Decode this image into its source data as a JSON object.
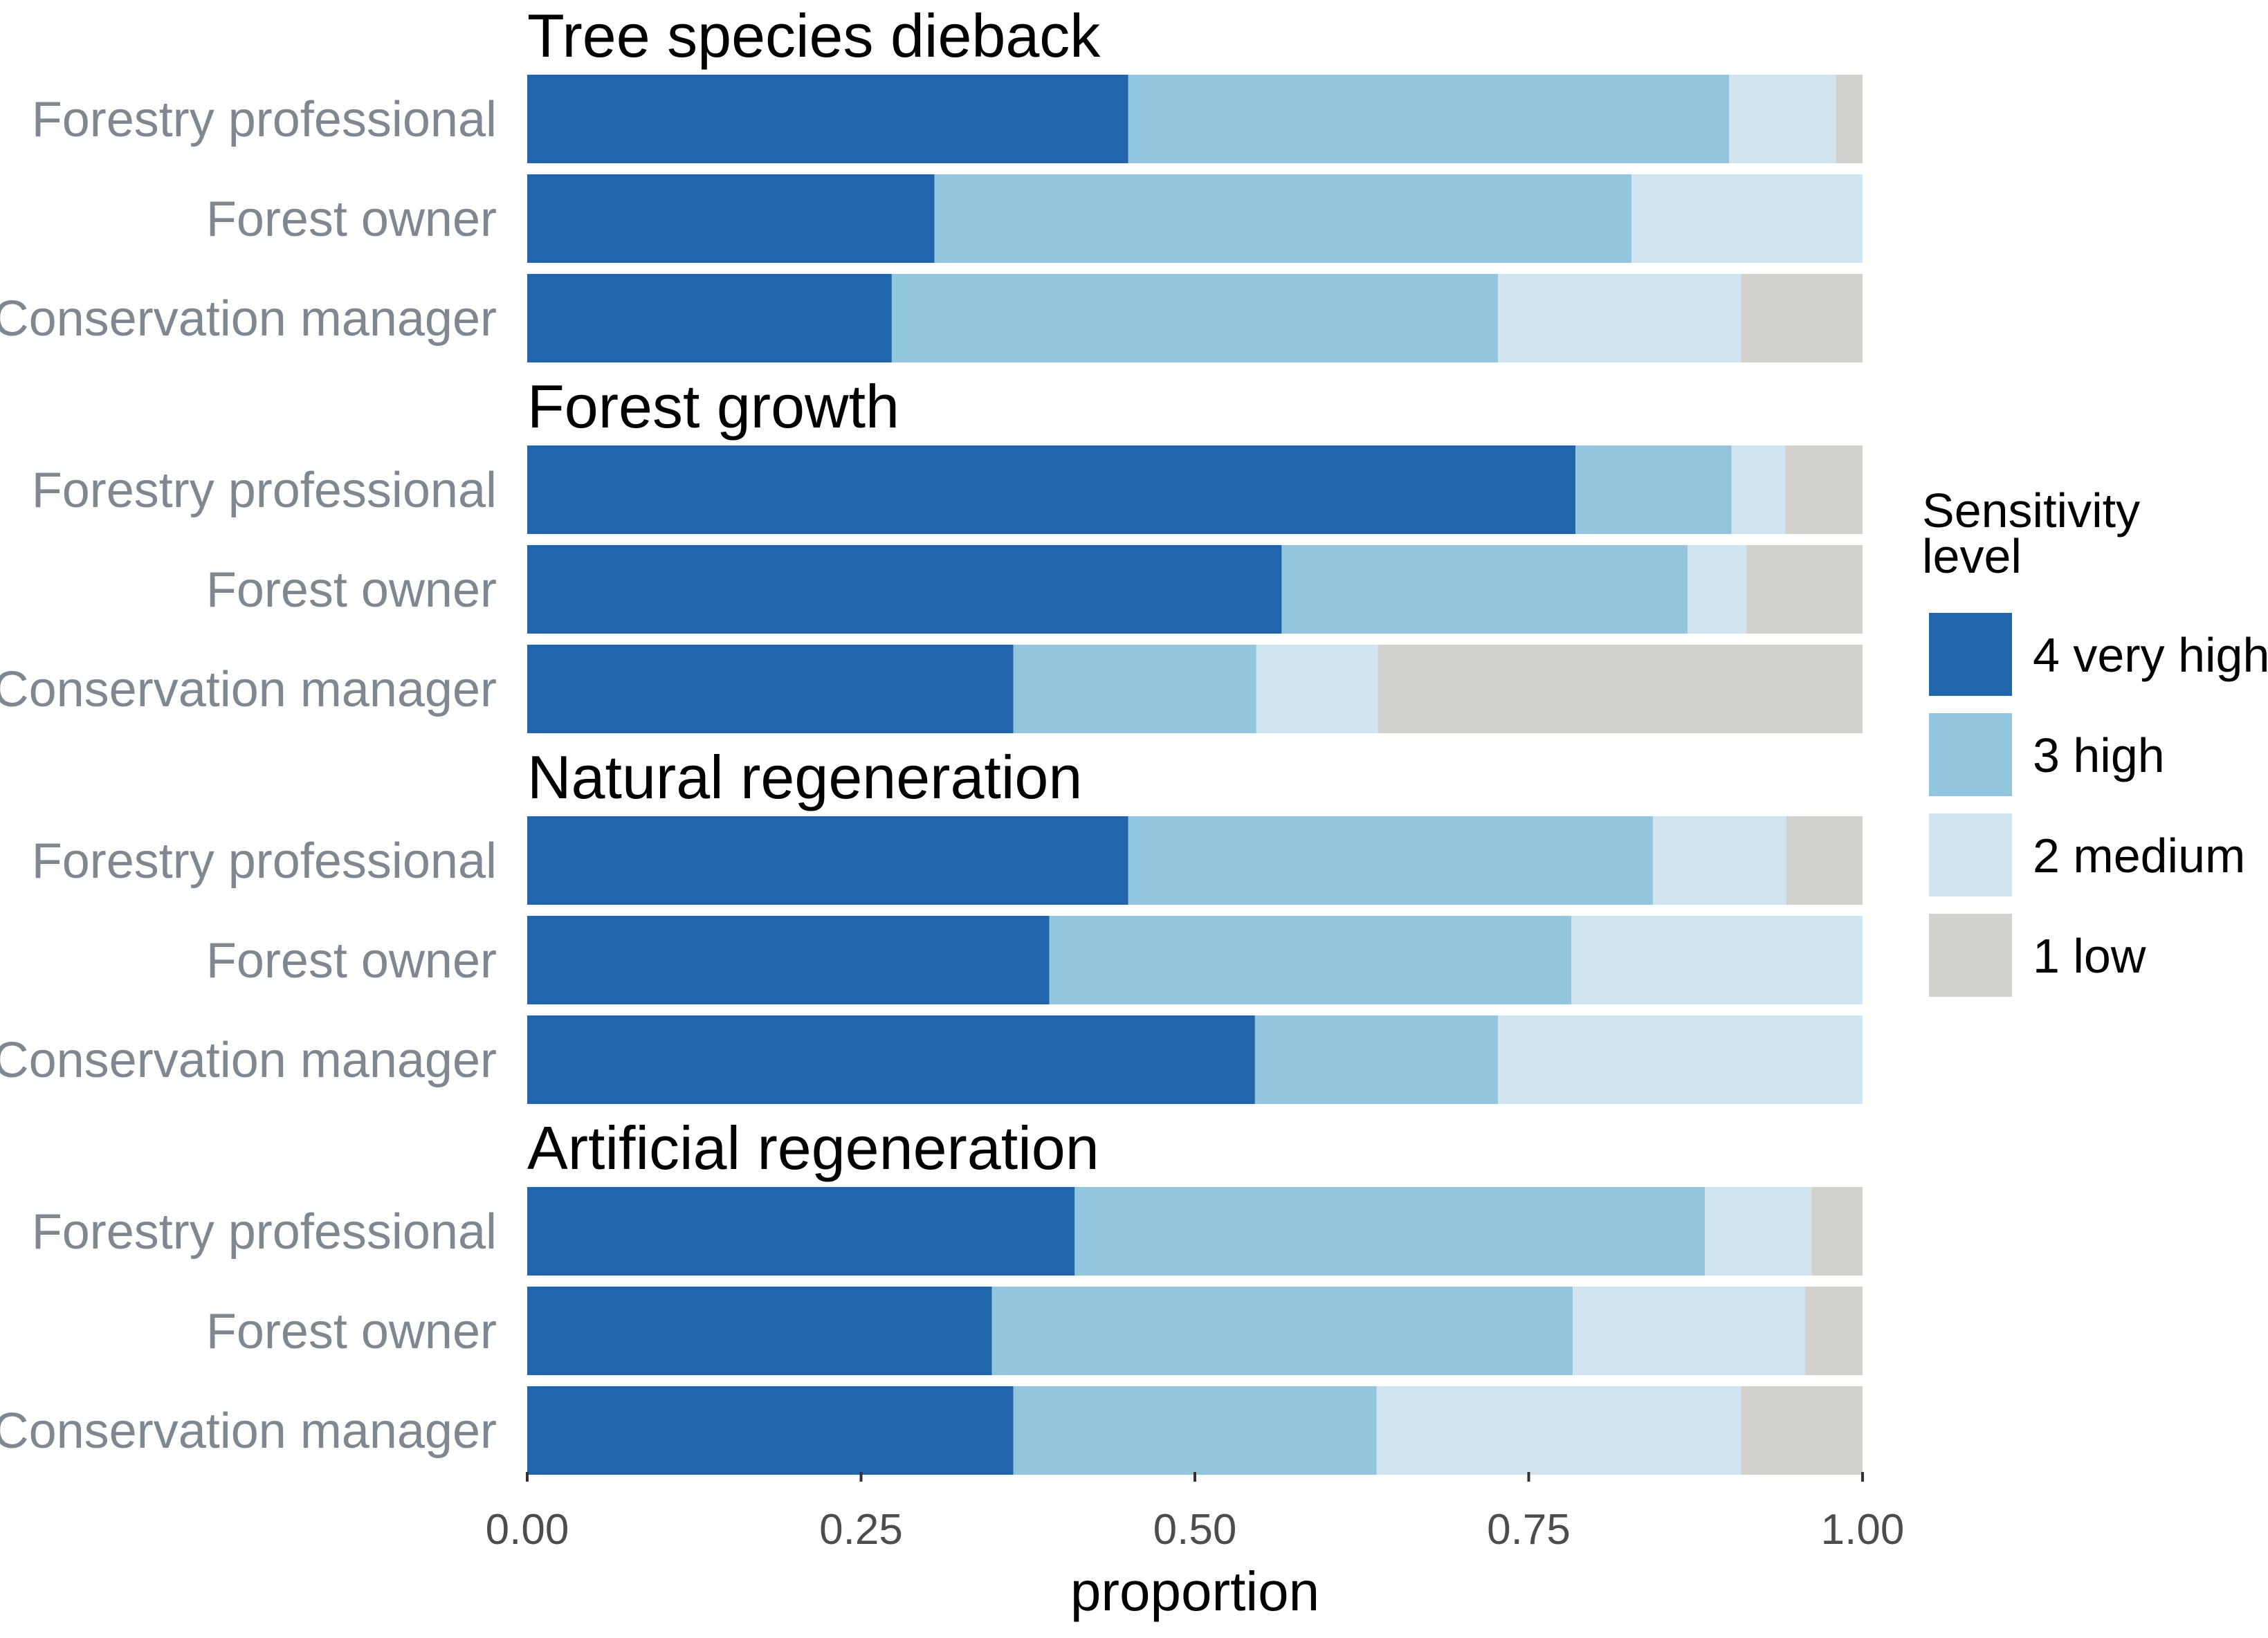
{
  "chart_data": {
    "type": "bar",
    "orientation": "horizontal",
    "stacked": true,
    "xlabel": "proportion",
    "xlim": [
      0,
      1
    ],
    "x_ticks": [
      "0.00",
      "0.25",
      "0.50",
      "0.75",
      "1.00"
    ],
    "x_tick_values": [
      0,
      0.25,
      0.5,
      0.75,
      1.0
    ],
    "legend": {
      "title_lines": [
        "Sensitivity",
        "level"
      ],
      "placement": "right",
      "entries": [
        {
          "key": "very_high",
          "label": "4 very high",
          "color": "#2166ac"
        },
        {
          "key": "high",
          "label": "3 high",
          "color": "#92c5de"
        },
        {
          "key": "medium",
          "label": "2 medium",
          "color": "#d1e5f0"
        },
        {
          "key": "low",
          "label": "1 low",
          "color": "#d3d1cd"
        }
      ]
    },
    "facets": [
      {
        "title": "Tree species dieback",
        "rows": [
          {
            "label": "Forestry professional",
            "values": [
              0.45,
              0.45,
              0.08,
              0.02
            ]
          },
          {
            "label": "Forest owner",
            "values": [
              0.305,
              0.522,
              0.173,
              0.0
            ]
          },
          {
            "label": "Conservation manager",
            "values": [
              0.273,
              0.454,
              0.182,
              0.091
            ]
          }
        ]
      },
      {
        "title": "Forest growth",
        "rows": [
          {
            "label": "Forestry professional",
            "values": [
              0.785,
              0.117,
              0.04,
              0.058
            ]
          },
          {
            "label": "Forest owner",
            "values": [
              0.565,
              0.304,
              0.044,
              0.087
            ]
          },
          {
            "label": "Conservation manager",
            "values": [
              0.364,
              0.182,
              0.091,
              0.363
            ]
          }
        ]
      },
      {
        "title": "Natural regeneration",
        "rows": [
          {
            "label": "Forestry professional",
            "values": [
              0.45,
              0.393,
              0.1,
              0.057
            ]
          },
          {
            "label": "Forest owner",
            "values": [
              0.391,
              0.391,
              0.218,
              0.0
            ]
          },
          {
            "label": "Conservation manager",
            "values": [
              0.545,
              0.182,
              0.273,
              0.0
            ]
          }
        ]
      },
      {
        "title": "Artificial regeneration",
        "rows": [
          {
            "label": "Forestry professional",
            "values": [
              0.41,
              0.472,
              0.08,
              0.038
            ]
          },
          {
            "label": "Forest owner",
            "values": [
              0.348,
              0.435,
              0.174,
              0.043
            ]
          },
          {
            "label": "Conservation manager",
            "values": [
              0.364,
              0.272,
              0.273,
              0.091
            ]
          }
        ]
      }
    ]
  }
}
